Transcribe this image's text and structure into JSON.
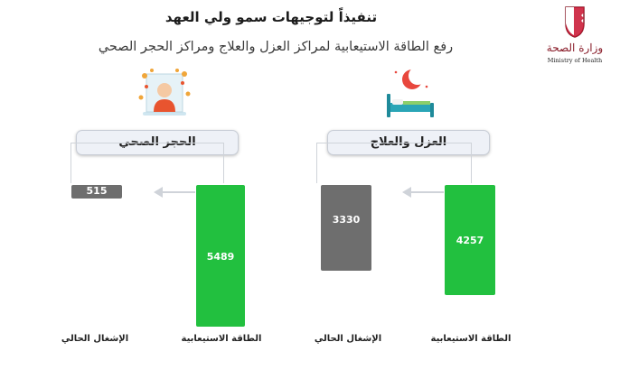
{
  "header": {
    "title": "تنفيذاً لتوجيهات سمو ولي العهد",
    "subtitle": "رفع الطاقة الاستيعابية لمراكز العزل والعلاج ومراكز الحجر الصحي"
  },
  "logo": {
    "arabic": "وزارة الصحة",
    "english": "Ministry of Health"
  },
  "colors": {
    "capacity_bar": "#22c03f",
    "occupancy_bar": "#6e6e6e",
    "connector": "#cfd3d9"
  },
  "icons": {
    "isolation": "bed-with-moon-icon",
    "quarantine": "person-with-virus-icon"
  },
  "chart_data": {
    "type": "bar",
    "groups": [
      {
        "name": "الحجر الصحي",
        "bars": [
          {
            "label": "الطاقة الاستيعابية",
            "value": 5489
          },
          {
            "label": "الإشغال الحالي",
            "value": 515
          }
        ]
      },
      {
        "name": "العزل والعلاج",
        "bars": [
          {
            "label": "الطاقة الاستيعابية",
            "value": 4257
          },
          {
            "label": "الإشغال الحالي",
            "value": 3330
          }
        ]
      }
    ]
  }
}
